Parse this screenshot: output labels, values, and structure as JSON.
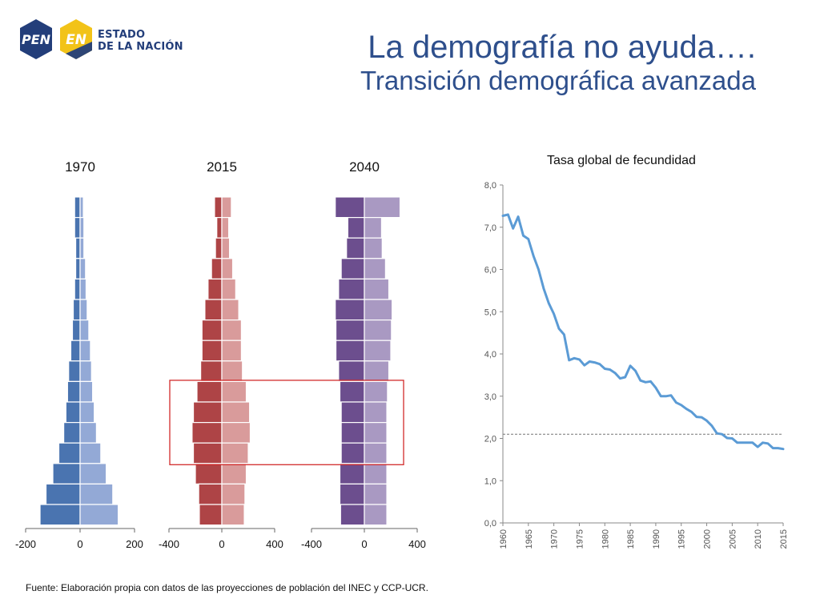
{
  "logo": {
    "badge1": "PEN",
    "badge2": "EN",
    "line1": "ESTADO",
    "line2": "DE LA NACIÓN",
    "colors": {
      "blue": "#233e7a",
      "yellow": "#f2c318"
    }
  },
  "title": {
    "line1": "La demografía no ayuda….",
    "line2": "Transición demográfica avanzada"
  },
  "source": "Fuente: Elaboración propia con datos de las proyecciones de población del INEC y CCP-UCR.",
  "chart_data": [
    {
      "type": "bar",
      "subtype": "population-pyramid",
      "title": "1970",
      "x_ticks": [
        -200,
        0,
        200
      ],
      "xlim": [
        -200,
        200
      ],
      "colors": {
        "male": "#4a74b0",
        "female": "#93a9d6"
      },
      "groups": 16,
      "male": [
        20,
        20,
        16,
        16,
        20,
        25,
        28,
        34,
        42,
        46,
        52,
        60,
        78,
        100,
        125,
        147
      ],
      "female": [
        12,
        14,
        14,
        20,
        22,
        26,
        32,
        38,
        42,
        46,
        52,
        60,
        76,
        96,
        120,
        140
      ]
    },
    {
      "type": "bar",
      "subtype": "population-pyramid",
      "title": "2015",
      "x_ticks": [
        -400,
        0,
        400
      ],
      "xlim": [
        -400,
        400
      ],
      "colors": {
        "male": "#ae4446",
        "female": "#d99b9b"
      },
      "groups": 16,
      "male": [
        55,
        38,
        48,
        78,
        104,
        128,
        150,
        150,
        160,
        188,
        215,
        225,
        215,
        200,
        175,
        170
      ],
      "female": [
        72,
        52,
        58,
        82,
        105,
        128,
        148,
        148,
        156,
        185,
        210,
        215,
        200,
        185,
        175,
        170
      ]
    },
    {
      "type": "bar",
      "subtype": "population-pyramid",
      "title": "2040",
      "x_ticks": [
        -400,
        0,
        400
      ],
      "xlim": [
        -400,
        400
      ],
      "colors": {
        "male": "#6c4e8e",
        "female": "#a999c2"
      },
      "groups": 16,
      "male": [
        220,
        125,
        135,
        175,
        195,
        220,
        215,
        215,
        195,
        185,
        175,
        175,
        175,
        185,
        185,
        180
      ],
      "female": [
        270,
        130,
        135,
        160,
        185,
        210,
        205,
        200,
        185,
        175,
        170,
        170,
        170,
        170,
        170,
        170
      ],
      "highlight_from_top": [
        9,
        12
      ]
    },
    {
      "type": "line",
      "title": "Tasa global de fecundidad",
      "ylim": [
        0,
        8
      ],
      "y_ticks": [
        "0,0",
        "1,0",
        "2,0",
        "3,0",
        "4,0",
        "5,0",
        "6,0",
        "7,0",
        "8,0"
      ],
      "x_ticks": [
        "1960",
        "1965",
        "1970",
        "1975",
        "1980",
        "1985",
        "1990",
        "1995",
        "2000",
        "2005",
        "2010",
        "2015"
      ],
      "xlim": [
        1960,
        2015
      ],
      "reference_line": 2.1,
      "color": "#5b9bd5",
      "series": [
        {
          "x": [
            1960,
            1961,
            1962,
            1963,
            1964,
            1965,
            1966,
            1967,
            1968,
            1969,
            1970,
            1971,
            1972,
            1973,
            1974,
            1975,
            1976,
            1977,
            1978,
            1979,
            1980,
            1981,
            1982,
            1983,
            1984,
            1985,
            1986,
            1987,
            1988,
            1989,
            1990,
            1991,
            1992,
            1993,
            1994,
            1995,
            1996,
            1997,
            1998,
            1999,
            2000,
            2001,
            2002,
            2003,
            2004,
            2005,
            2006,
            2007,
            2008,
            2009,
            2010,
            2011,
            2012,
            2013,
            2014,
            2015
          ],
          "values": [
            7.27,
            7.3,
            6.97,
            7.25,
            6.8,
            6.72,
            6.32,
            6.0,
            5.55,
            5.2,
            4.95,
            4.6,
            4.46,
            3.85,
            3.9,
            3.87,
            3.73,
            3.82,
            3.8,
            3.76,
            3.65,
            3.63,
            3.55,
            3.42,
            3.45,
            3.72,
            3.6,
            3.37,
            3.33,
            3.35,
            3.2,
            3.0,
            3.0,
            3.02,
            2.85,
            2.79,
            2.7,
            2.63,
            2.51,
            2.5,
            2.42,
            2.3,
            2.12,
            2.1,
            2.01,
            2.0,
            1.9,
            1.9,
            1.9,
            1.9,
            1.8,
            1.9,
            1.88,
            1.77,
            1.77,
            1.75
          ]
        }
      ]
    }
  ]
}
